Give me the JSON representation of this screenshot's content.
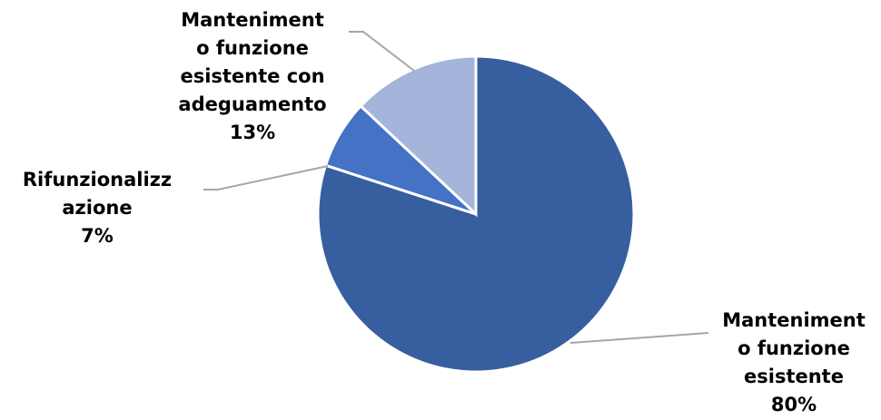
{
  "chart_data": {
    "type": "pie",
    "title": "",
    "start_angle_deg": 0,
    "direction": "clockwise",
    "colors": {
      "slice_border": "#ffffff",
      "leader_line": "#a6a6a6"
    },
    "slices": [
      {
        "label": "Manteniment o funzione esistente",
        "label_lines": [
          "Manteniment",
          "o funzione",
          "esistente"
        ],
        "value": 80,
        "value_label": "80%",
        "color": "#375e9f"
      },
      {
        "label": "Rifunzionalizz azione",
        "label_lines": [
          "Rifunzionalizz",
          "azione"
        ],
        "value": 7,
        "value_label": "7%",
        "color": "#4472c4"
      },
      {
        "label": "Manteniment o funzione esistente con adeguamento",
        "label_lines": [
          "Manteniment",
          "o funzione",
          "esistente con",
          "adeguamento"
        ],
        "value": 13,
        "value_label": "13%",
        "color": "#a5b4da"
      }
    ]
  }
}
